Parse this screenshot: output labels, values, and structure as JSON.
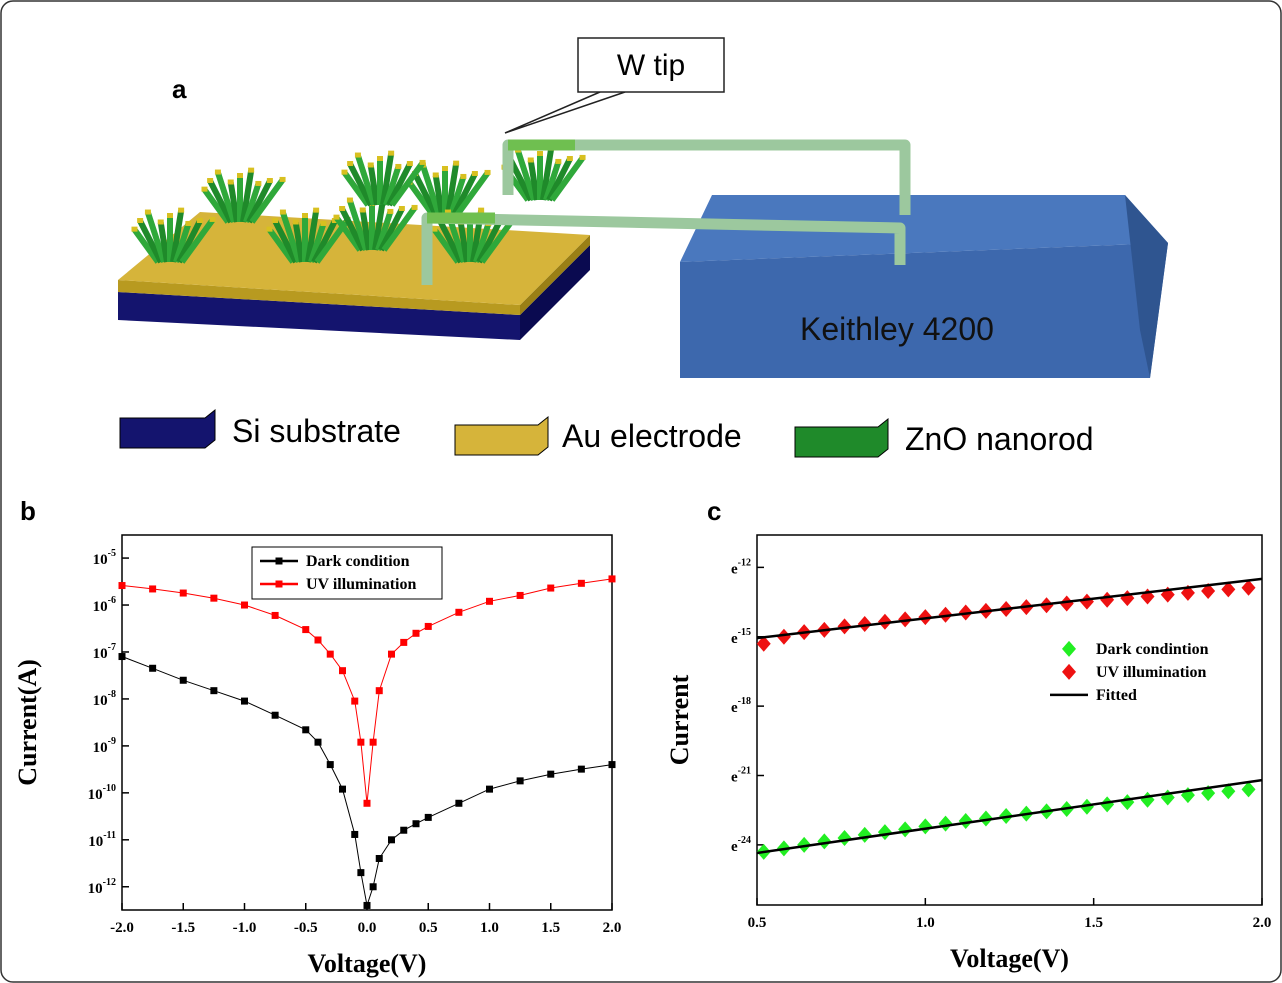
{
  "diagram": {
    "panel_label": "a",
    "callout": "W tip",
    "instrument": "Keithley 4200",
    "legend": [
      "Si substrate",
      "Au electrode",
      "ZnO nanorod"
    ]
  },
  "chart_data": [
    {
      "type": "line",
      "panel_label": "b",
      "xlabel": "Voltage(V)",
      "ylabel": "Current(A)",
      "x": [
        -2,
        -1.75,
        -1.5,
        -1.25,
        -1,
        -0.75,
        -0.5,
        -0.4,
        -0.3,
        -0.2,
        -0.1,
        -0.05,
        0,
        0.05,
        0.1,
        0.2,
        0.3,
        0.4,
        0.5,
        0.75,
        1,
        1.25,
        1.5,
        1.75,
        2
      ],
      "series": [
        {
          "name": "Dark condition",
          "color": "#000000",
          "marker": "square",
          "values": [
            8e-08,
            4.5e-08,
            2.5e-08,
            1.5e-08,
            9e-09,
            4.5e-09,
            2.2e-09,
            1.2e-09,
            4e-10,
            1.2e-10,
            1.3e-11,
            2e-12,
            4e-13,
            1e-12,
            4e-12,
            1e-11,
            1.6e-11,
            2.2e-11,
            3e-11,
            6e-11,
            1.2e-10,
            1.8e-10,
            2.5e-10,
            3.2e-10,
            4e-10
          ]
        },
        {
          "name": "UV illumination",
          "color": "#ff0000",
          "marker": "square",
          "values": [
            2.6e-06,
            2.2e-06,
            1.8e-06,
            1.4e-06,
            1e-06,
            6e-07,
            3e-07,
            1.8e-07,
            9e-08,
            4e-08,
            9e-09,
            1.2e-09,
            6e-11,
            1.2e-09,
            1.5e-08,
            9e-08,
            1.6e-07,
            2.5e-07,
            3.5e-07,
            7e-07,
            1.2e-06,
            1.6e-06,
            2.3e-06,
            2.9e-06,
            3.6e-06
          ]
        }
      ],
      "xlim": [
        -2,
        2
      ],
      "xticks": [
        {
          "value": -2,
          "label": "-2.0"
        },
        -1.5,
        {
          "value": -1,
          "label": "-1.0"
        },
        -0.5,
        {
          "value": 0,
          "label": "0.0"
        },
        0.5,
        {
          "value": 1,
          "label": "1.0"
        },
        1.5,
        {
          "value": 2,
          "label": "2.0"
        }
      ],
      "yscale": "log",
      "ylim": [
        3.2e-13,
        3.1e-05
      ],
      "yticks": [
        {
          "value": 1e-12,
          "label": "10-12"
        },
        {
          "value": 1e-11,
          "label": "10-11"
        },
        {
          "value": 1e-10,
          "label": "10-10"
        },
        {
          "value": 1e-09,
          "label": "10-9"
        },
        {
          "value": 1e-08,
          "label": "10-8"
        },
        {
          "value": 1e-07,
          "label": "10-7"
        },
        {
          "value": 1e-06,
          "label": "10-6"
        },
        {
          "value": 1e-05,
          "label": "10-5"
        }
      ],
      "legend": "upper center",
      "legend_frame": true
    },
    {
      "type": "scatter",
      "panel_label": "c",
      "xlabel": "Voltage(V)",
      "ylabel": "Current",
      "x": [
        0.52,
        0.58,
        0.64,
        0.7,
        0.76,
        0.82,
        0.88,
        0.94,
        1.0,
        1.06,
        1.12,
        1.18,
        1.24,
        1.3,
        1.36,
        1.42,
        1.48,
        1.54,
        1.6,
        1.66,
        1.72,
        1.78,
        1.84,
        1.9,
        1.96
      ],
      "series": [
        {
          "name": "Dark condintion",
          "color": "#22ee22",
          "marker": "diamond",
          "values": [
            -24.3,
            -24.15,
            -24.0,
            -23.85,
            -23.7,
            -23.57,
            -23.45,
            -23.33,
            -23.2,
            -23.08,
            -22.97,
            -22.86,
            -22.75,
            -22.65,
            -22.55,
            -22.45,
            -22.35,
            -22.25,
            -22.15,
            -22.05,
            -21.95,
            -21.85,
            -21.76,
            -21.68,
            -21.6
          ]
        },
        {
          "name": "UV illumination",
          "color": "#ee1111",
          "marker": "diamond",
          "values": [
            -15.3,
            -15.0,
            -14.8,
            -14.7,
            -14.55,
            -14.45,
            -14.35,
            -14.25,
            -14.15,
            -14.05,
            -13.95,
            -13.88,
            -13.8,
            -13.72,
            -13.64,
            -13.56,
            -13.48,
            -13.4,
            -13.33,
            -13.26,
            -13.18,
            -13.1,
            -13.02,
            -12.95,
            -12.88
          ]
        },
        {
          "name": "Fitted",
          "type": "line",
          "color": "#000000",
          "x": [
            0.5,
            2,
            null,
            0.5,
            2
          ],
          "values": [
            -15.06,
            -12.5,
            null,
            -24.35,
            -21.2
          ]
        }
      ],
      "xlim": [
        0.5,
        2
      ],
      "xticks": [
        0.5,
        {
          "value": 1,
          "label": "1.0"
        },
        1.5,
        {
          "value": 2,
          "label": "2.0"
        }
      ],
      "ylim": [
        -26.6,
        -10.6
      ],
      "yticks": [
        {
          "value": -24,
          "label": "e-24"
        },
        {
          "value": -21,
          "label": "e-21"
        },
        {
          "value": -18,
          "label": "e-18"
        },
        {
          "value": -15,
          "label": "e-15"
        },
        {
          "value": -12,
          "label": "e-12"
        }
      ],
      "legend": "center right",
      "legend_frame": false
    }
  ]
}
